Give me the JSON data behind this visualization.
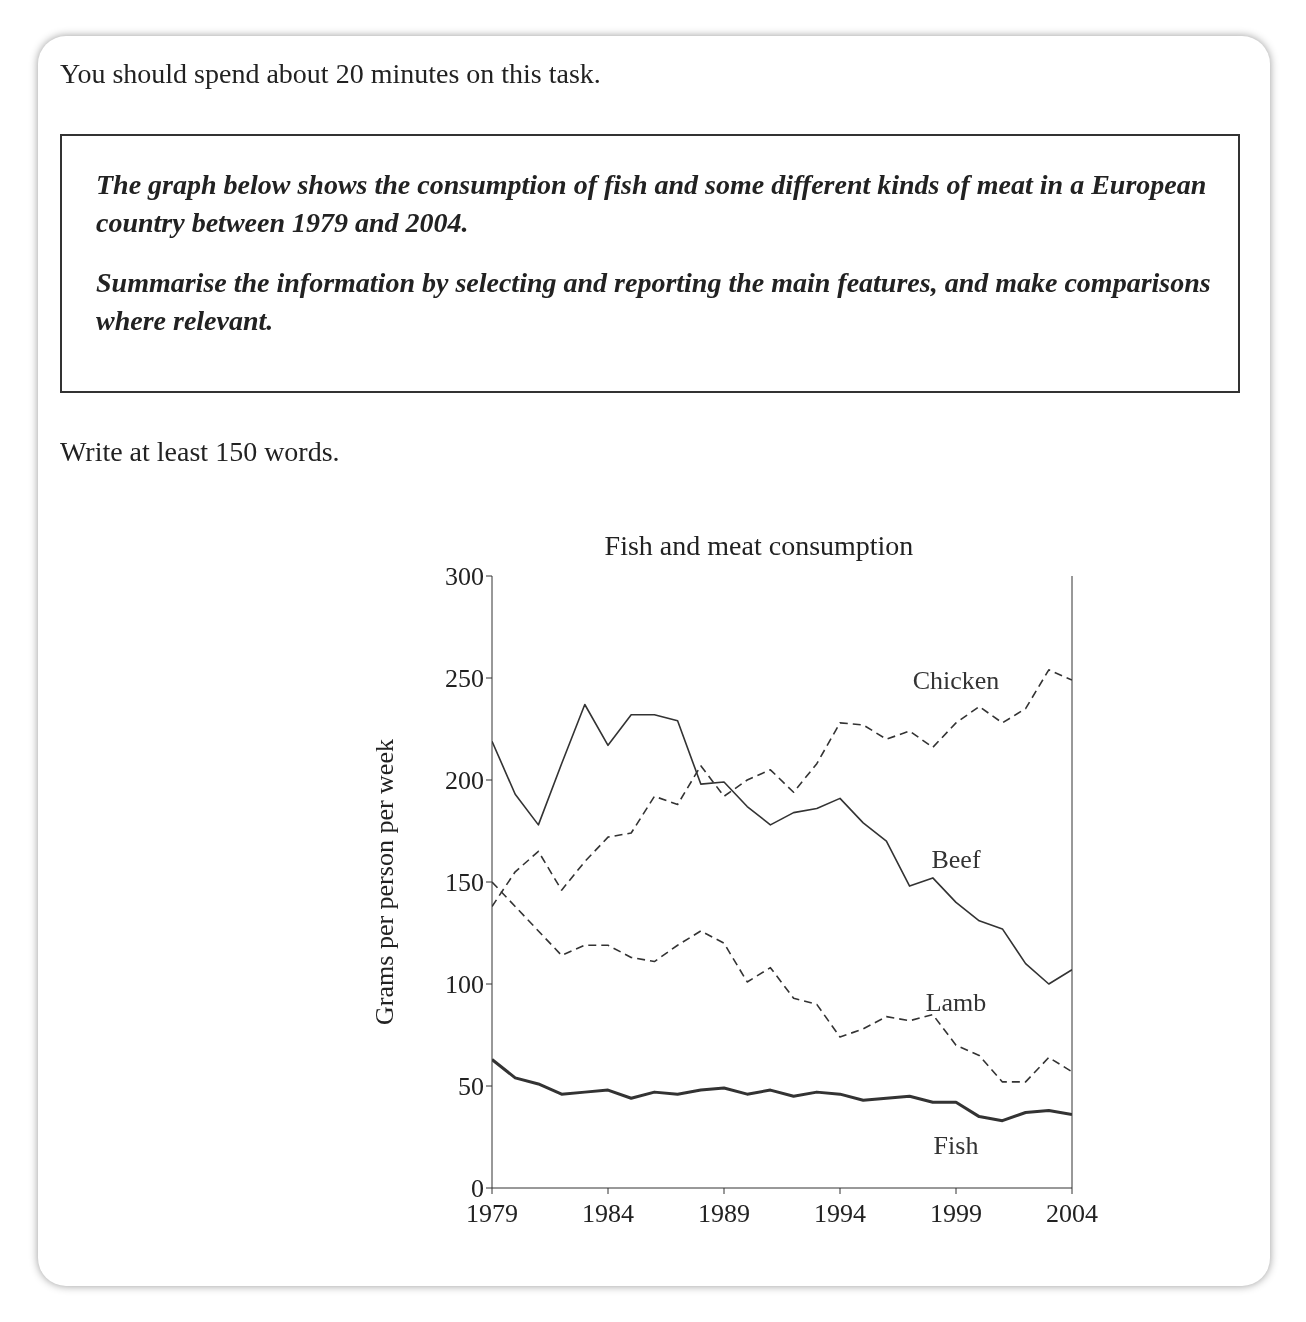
{
  "chart_data": {
    "type": "line",
    "title": "Fish and meat consumption",
    "ylabel": "Grams per person per week",
    "annotations": [
      "You should spend about 20 minutes on this task.",
      "The graph below shows the consumption of fish and some different kinds of meat in a European country between 1979 and 2004.",
      "Summarise the information by selecting and reporting the main features, and make comparisons where relevant.",
      "Write at least 150 words."
    ],
    "x": [
      1979,
      1980,
      1981,
      1982,
      1983,
      1984,
      1985,
      1986,
      1987,
      1988,
      1989,
      1990,
      1991,
      1992,
      1993,
      1994,
      1995,
      1996,
      1997,
      1998,
      1999,
      2000,
      2001,
      2002,
      2003,
      2004
    ],
    "series": [
      {
        "name": "Chicken",
        "color": "#333333",
        "line_style": "dashed",
        "values": [
          138,
          155,
          165,
          146,
          160,
          172,
          174,
          192,
          188,
          207,
          192,
          200,
          205,
          194,
          208,
          228,
          227,
          220,
          224,
          216,
          228,
          236,
          228,
          235,
          254,
          249
        ]
      },
      {
        "name": "Beef",
        "color": "#333333",
        "line_style": "solid",
        "values": [
          219,
          193,
          178,
          208,
          237,
          217,
          232,
          232,
          229,
          198,
          199,
          187,
          178,
          184,
          186,
          191,
          179,
          170,
          148,
          152,
          140,
          131,
          127,
          110,
          100,
          107
        ]
      },
      {
        "name": "Lamb",
        "color": "#333333",
        "line_style": "dashed",
        "values": [
          150,
          138,
          126,
          114,
          119,
          119,
          113,
          111,
          119,
          126,
          120,
          101,
          108,
          93,
          90,
          74,
          78,
          84,
          82,
          85,
          70,
          65,
          52,
          52,
          64,
          57
        ]
      },
      {
        "name": "Fish",
        "color": "#333333",
        "line_style": "solid",
        "values": [
          63,
          54,
          51,
          46,
          47,
          48,
          44,
          47,
          46,
          48,
          49,
          46,
          48,
          45,
          47,
          46,
          43,
          44,
          45,
          42,
          42,
          35,
          33,
          37,
          38,
          36
        ]
      }
    ],
    "xlim": [
      1979,
      2004
    ],
    "xticks": [
      1979,
      1984,
      1989,
      1994,
      1999,
      2004
    ],
    "ylim": [
      0,
      300
    ],
    "yticks": [
      0,
      50,
      100,
      150,
      200,
      250,
      300
    ],
    "marker": "none"
  }
}
